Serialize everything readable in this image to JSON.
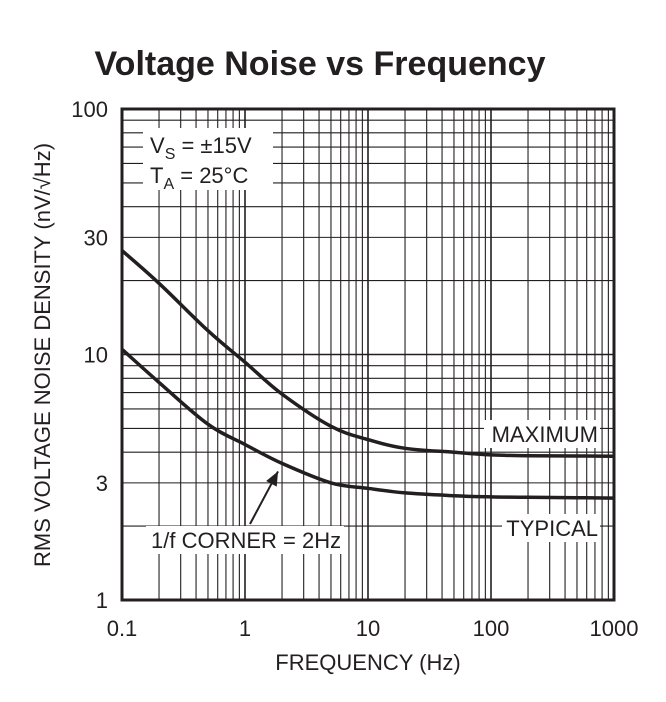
{
  "chart_data": {
    "type": "line",
    "title": "Voltage Noise vs Frequency",
    "xlabel": "FREQUENCY (Hz)",
    "ylabel": "RMS VOLTAGE NOISE DENSITY (nV/√Hz)",
    "xscale": "log",
    "yscale": "log",
    "xlim": [
      0.1,
      1000
    ],
    "ylim": [
      1,
      100
    ],
    "grid": true,
    "x_ticks": [
      {
        "value": 0.1,
        "label": "0.1"
      },
      {
        "value": 1,
        "label": "1"
      },
      {
        "value": 10,
        "label": "10"
      },
      {
        "value": 100,
        "label": "100"
      },
      {
        "value": 1000,
        "label": "1000"
      }
    ],
    "y_ticks": [
      {
        "value": 1,
        "label": "1"
      },
      {
        "value": 3,
        "label": "3"
      },
      {
        "value": 10,
        "label": "10"
      },
      {
        "value": 30,
        "label": "30"
      },
      {
        "value": 100,
        "label": "100"
      }
    ],
    "conditions": {
      "vs_main": "V",
      "vs_sub": "S",
      "vs_rest": " = ±15V",
      "ta_main": "T",
      "ta_sub": "A",
      "ta_rest": " = 25°C"
    },
    "series": [
      {
        "name": "MAXIMUM",
        "x": [
          0.1,
          0.2,
          0.5,
          1,
          2,
          5,
          10,
          20,
          50,
          100,
          200,
          500,
          1000
        ],
        "y": [
          26.5,
          19.5,
          12.5,
          9.3,
          6.9,
          5.1,
          4.5,
          4.15,
          4.0,
          3.9,
          3.87,
          3.86,
          3.85
        ]
      },
      {
        "name": "TYPICAL",
        "x": [
          0.1,
          0.2,
          0.5,
          1,
          2,
          5,
          10,
          20,
          50,
          100,
          200,
          500,
          1000
        ],
        "y": [
          10.5,
          7.7,
          5.2,
          4.3,
          3.6,
          3.0,
          2.85,
          2.73,
          2.66,
          2.63,
          2.62,
          2.61,
          2.6
        ]
      }
    ],
    "annotations": [
      {
        "text": "1/f CORNER = 2Hz",
        "points_to": {
          "x": 2,
          "y": 3.6
        }
      }
    ]
  }
}
